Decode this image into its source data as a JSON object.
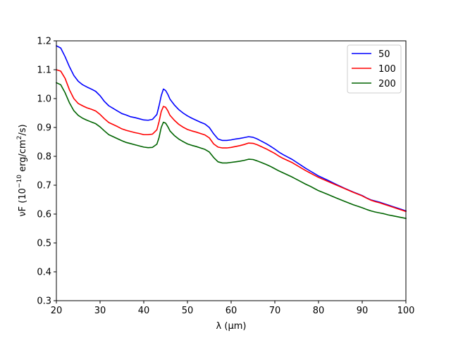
{
  "chart_data": {
    "type": "line",
    "title": "",
    "xlabel": "λ (μm)",
    "ylabel": {
      "prefix": "νF (10",
      "exp": "−10",
      "middle": " erg/cm",
      "exp2": "2",
      "suffix": "/s)"
    },
    "xlim": [
      20,
      100
    ],
    "ylim": [
      0.3,
      1.2
    ],
    "xticks": [
      20,
      30,
      40,
      50,
      60,
      70,
      80,
      90,
      100
    ],
    "xtick_labels": [
      "20",
      "30",
      "40",
      "50",
      "60",
      "70",
      "80",
      "90",
      "100"
    ],
    "yticks": [
      0.3,
      0.4,
      0.5,
      0.6,
      0.7,
      0.8,
      0.9,
      1.0,
      1.1,
      1.2
    ],
    "ytick_labels": [
      "0.3",
      "0.4",
      "0.5",
      "0.6",
      "0.7",
      "0.8",
      "0.9",
      "1.0",
      "1.1",
      "1.2"
    ],
    "grid": false,
    "legend_position": "top-right",
    "series": [
      {
        "name": "50",
        "color": "#0000ff",
        "x": [
          20,
          21,
          22,
          23,
          24,
          25,
          26,
          27,
          28,
          29,
          30,
          31,
          32,
          33,
          34,
          35,
          36,
          37,
          38,
          39,
          40,
          41,
          42,
          43,
          43.5,
          44,
          44.5,
          45,
          45.5,
          46,
          47,
          48,
          49,
          50,
          51,
          52,
          53,
          54,
          55,
          56,
          57,
          58,
          59,
          60,
          61,
          62,
          63,
          64,
          65,
          66,
          67,
          68,
          69,
          70,
          71,
          72,
          73,
          74,
          75,
          76,
          77,
          78,
          79,
          80,
          82,
          84,
          86,
          88,
          90,
          91,
          92,
          93,
          94,
          95,
          96,
          97,
          98,
          99,
          100
        ],
        "y": [
          1.183,
          1.175,
          1.145,
          1.11,
          1.08,
          1.06,
          1.048,
          1.04,
          1.033,
          1.025,
          1.01,
          0.99,
          0.975,
          0.966,
          0.957,
          0.948,
          0.943,
          0.937,
          0.934,
          0.93,
          0.926,
          0.925,
          0.928,
          0.945,
          0.975,
          1.01,
          1.033,
          1.028,
          1.015,
          0.998,
          0.978,
          0.962,
          0.95,
          0.94,
          0.932,
          0.925,
          0.918,
          0.912,
          0.9,
          0.878,
          0.86,
          0.855,
          0.855,
          0.857,
          0.86,
          0.862,
          0.865,
          0.868,
          0.866,
          0.86,
          0.852,
          0.844,
          0.835,
          0.825,
          0.814,
          0.805,
          0.797,
          0.789,
          0.779,
          0.769,
          0.759,
          0.75,
          0.741,
          0.732,
          0.718,
          0.703,
          0.689,
          0.676,
          0.664,
          0.656,
          0.649,
          0.645,
          0.641,
          0.636,
          0.631,
          0.626,
          0.621,
          0.616,
          0.611
        ]
      },
      {
        "name": "100",
        "color": "#ff0000",
        "x": [
          20,
          21,
          22,
          23,
          24,
          25,
          26,
          27,
          28,
          29,
          30,
          31,
          32,
          33,
          34,
          35,
          36,
          37,
          38,
          39,
          40,
          41,
          42,
          43,
          43.5,
          44,
          44.5,
          45,
          45.5,
          46,
          47,
          48,
          49,
          50,
          51,
          52,
          53,
          54,
          55,
          56,
          57,
          58,
          59,
          60,
          61,
          62,
          63,
          64,
          65,
          66,
          67,
          68,
          69,
          70,
          71,
          72,
          73,
          74,
          75,
          76,
          77,
          78,
          79,
          80,
          82,
          84,
          86,
          88,
          90,
          91,
          92,
          93,
          94,
          95,
          96,
          97,
          98,
          99,
          100
        ],
        "y": [
          1.1,
          1.095,
          1.07,
          1.03,
          1.0,
          0.983,
          0.975,
          0.968,
          0.963,
          0.957,
          0.945,
          0.93,
          0.917,
          0.91,
          0.903,
          0.895,
          0.89,
          0.886,
          0.882,
          0.879,
          0.875,
          0.875,
          0.877,
          0.892,
          0.92,
          0.955,
          0.973,
          0.97,
          0.958,
          0.942,
          0.925,
          0.911,
          0.901,
          0.893,
          0.888,
          0.884,
          0.879,
          0.874,
          0.864,
          0.843,
          0.832,
          0.829,
          0.829,
          0.831,
          0.834,
          0.837,
          0.841,
          0.846,
          0.845,
          0.84,
          0.833,
          0.826,
          0.818,
          0.81,
          0.8,
          0.792,
          0.785,
          0.778,
          0.769,
          0.76,
          0.751,
          0.743,
          0.735,
          0.727,
          0.714,
          0.701,
          0.688,
          0.675,
          0.663,
          0.655,
          0.648,
          0.643,
          0.639,
          0.634,
          0.629,
          0.624,
          0.619,
          0.614,
          0.609
        ]
      },
      {
        "name": "200",
        "color": "#006400",
        "x": [
          20,
          21,
          22,
          23,
          24,
          25,
          26,
          27,
          28,
          29,
          30,
          31,
          32,
          33,
          34,
          35,
          36,
          37,
          38,
          39,
          40,
          41,
          42,
          43,
          43.5,
          44,
          44.5,
          45,
          45.5,
          46,
          47,
          48,
          49,
          50,
          51,
          52,
          53,
          54,
          55,
          56,
          57,
          58,
          59,
          60,
          61,
          62,
          63,
          64,
          65,
          66,
          67,
          68,
          69,
          70,
          71,
          72,
          73,
          74,
          75,
          76,
          77,
          78,
          79,
          80,
          82,
          84,
          86,
          88,
          90,
          91,
          92,
          93,
          94,
          95,
          96,
          97,
          98,
          99,
          100
        ],
        "y": [
          1.055,
          1.048,
          1.02,
          0.985,
          0.958,
          0.942,
          0.932,
          0.925,
          0.919,
          0.913,
          0.902,
          0.888,
          0.875,
          0.868,
          0.861,
          0.854,
          0.848,
          0.844,
          0.84,
          0.836,
          0.832,
          0.83,
          0.831,
          0.842,
          0.865,
          0.9,
          0.918,
          0.915,
          0.903,
          0.888,
          0.872,
          0.86,
          0.851,
          0.843,
          0.838,
          0.834,
          0.829,
          0.824,
          0.815,
          0.796,
          0.781,
          0.777,
          0.777,
          0.779,
          0.781,
          0.783,
          0.786,
          0.79,
          0.789,
          0.784,
          0.778,
          0.772,
          0.765,
          0.757,
          0.749,
          0.742,
          0.735,
          0.728,
          0.72,
          0.712,
          0.704,
          0.697,
          0.689,
          0.681,
          0.669,
          0.656,
          0.644,
          0.632,
          0.622,
          0.616,
          0.611,
          0.607,
          0.604,
          0.601,
          0.597,
          0.594,
          0.591,
          0.588,
          0.585
        ]
      }
    ]
  }
}
